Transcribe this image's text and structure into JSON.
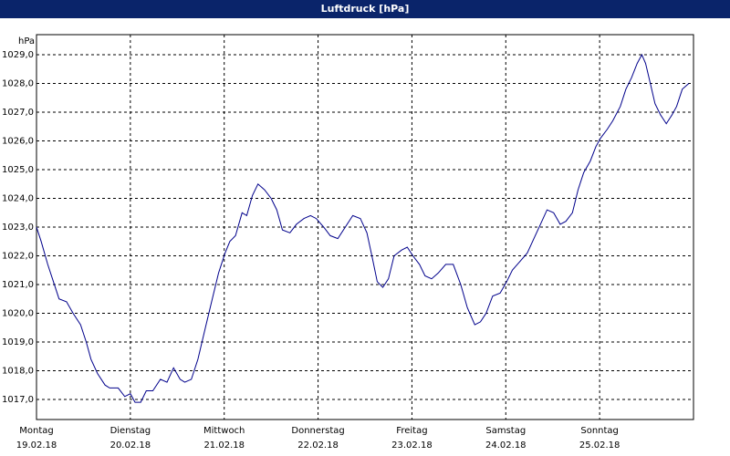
{
  "chart_data": {
    "type": "line",
    "title": "Luftdruck [hPa]",
    "y_unit": "hPa",
    "x": [
      0,
      0.05,
      0.12,
      0.17,
      0.24,
      0.32,
      0.39,
      0.47,
      0.53,
      0.58,
      0.65,
      0.73,
      0.78,
      0.87,
      0.94,
      1.0,
      1.05,
      1.11,
      1.17,
      1.24,
      1.32,
      1.39,
      1.46,
      1.53,
      1.58,
      1.65,
      1.72,
      1.8,
      1.88,
      1.94,
      2.01,
      2.06,
      2.12,
      2.19,
      2.24,
      2.3,
      2.36,
      2.43,
      2.5,
      2.56,
      2.62,
      2.7,
      2.77,
      2.85,
      2.92,
      2.98,
      3.06,
      3.13,
      3.21,
      3.29,
      3.37,
      3.45,
      3.52,
      3.58,
      3.63,
      3.69,
      3.75,
      3.81,
      3.89,
      3.95,
      4.01,
      4.08,
      4.14,
      4.21,
      4.28,
      4.36,
      4.44,
      4.52,
      4.59,
      4.67,
      4.73,
      4.79,
      4.86,
      4.94,
      5.01,
      5.07,
      5.15,
      5.23,
      5.3,
      5.37,
      5.44,
      5.51,
      5.58,
      5.64,
      5.71,
      5.77,
      5.83,
      5.9,
      5.96,
      6.01,
      6.08,
      6.14,
      6.22,
      6.28,
      6.34,
      6.4,
      6.45,
      6.49,
      6.54,
      6.59,
      6.65,
      6.71,
      6.77,
      6.82,
      6.88,
      6.95
    ],
    "series": [
      {
        "color": "#00008b",
        "values": [
          1023.0,
          1022.5,
          1021.7,
          1021.2,
          1020.5,
          1020.4,
          1020.0,
          1019.6,
          1019.0,
          1018.4,
          1017.9,
          1017.5,
          1017.4,
          1017.4,
          1017.1,
          1017.2,
          1016.9,
          1016.9,
          1017.3,
          1017.3,
          1017.7,
          1017.6,
          1018.1,
          1017.7,
          1017.6,
          1017.7,
          1018.4,
          1019.5,
          1020.6,
          1021.4,
          1022.1,
          1022.5,
          1022.7,
          1023.5,
          1023.4,
          1024.1,
          1024.5,
          1024.3,
          1024.0,
          1023.6,
          1022.9,
          1022.8,
          1023.1,
          1023.3,
          1023.4,
          1023.3,
          1023.0,
          1022.7,
          1022.6,
          1023.0,
          1023.4,
          1023.3,
          1022.8,
          1021.9,
          1021.1,
          1020.9,
          1021.2,
          1022.0,
          1022.2,
          1022.3,
          1022.0,
          1021.7,
          1021.3,
          1021.2,
          1021.4,
          1021.7,
          1021.7,
          1021.0,
          1020.2,
          1019.6,
          1019.7,
          1020.0,
          1020.6,
          1020.7,
          1021.1,
          1021.5,
          1021.8,
          1022.1,
          1022.6,
          1023.1,
          1023.6,
          1023.5,
          1023.1,
          1023.2,
          1023.5,
          1024.3,
          1024.9,
          1025.3,
          1025.8,
          1026.1,
          1026.4,
          1026.7,
          1027.2,
          1027.8,
          1028.2,
          1028.7,
          1029.0,
          1028.7,
          1028.0,
          1027.3,
          1026.9,
          1026.6,
          1026.9,
          1027.2,
          1027.8,
          1028.0
        ]
      }
    ],
    "xlim": [
      0,
      7
    ],
    "xticks": [
      {
        "value": 0,
        "label": "Montag"
      },
      {
        "value": 1,
        "label": "Dienstag"
      },
      {
        "value": 2,
        "label": "Mittwoch"
      },
      {
        "value": 3,
        "label": "Donnerstag"
      },
      {
        "value": 4,
        "label": "Freitag"
      },
      {
        "value": 5,
        "label": "Samstag"
      },
      {
        "value": 6,
        "label": "Sonntag"
      }
    ],
    "xtick_dates": [
      "19.02.18",
      "20.02.18",
      "21.02.18",
      "22.02.18",
      "23.02.18",
      "24.02.18",
      "25.02.18"
    ],
    "ylim": [
      1016.3,
      1029.7
    ],
    "yticks": [
      {
        "value": 1017,
        "label": "1017,0"
      },
      {
        "value": 1018,
        "label": "1018,0"
      },
      {
        "value": 1019,
        "label": "1019,0"
      },
      {
        "value": 1020,
        "label": "1020,0"
      },
      {
        "value": 1021,
        "label": "1021,0"
      },
      {
        "value": 1022,
        "label": "1022,0"
      },
      {
        "value": 1023,
        "label": "1023,0"
      },
      {
        "value": 1024,
        "label": "1024,0"
      },
      {
        "value": 1025,
        "label": "1025,0"
      },
      {
        "value": 1026,
        "label": "1026,0"
      },
      {
        "value": 1027,
        "label": "1027,0"
      },
      {
        "value": 1028,
        "label": "1028,0"
      },
      {
        "value": 1029,
        "label": "1029,0"
      }
    ],
    "grid": true
  }
}
